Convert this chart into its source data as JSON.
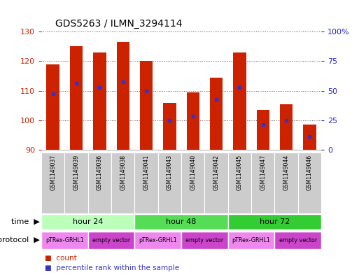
{
  "title": "GDS5263 / ILMN_3294114",
  "samples": [
    "GSM1149037",
    "GSM1149039",
    "GSM1149036",
    "GSM1149038",
    "GSM1149041",
    "GSM1149043",
    "GSM1149040",
    "GSM1149042",
    "GSM1149045",
    "GSM1149047",
    "GSM1149044",
    "GSM1149046"
  ],
  "bar_heights": [
    119.0,
    125.0,
    123.0,
    126.5,
    120.0,
    106.0,
    109.5,
    114.5,
    123.0,
    103.5,
    105.5,
    98.5
  ],
  "bar_bottom": 90,
  "percentile_values": [
    109.0,
    112.5,
    111.0,
    113.0,
    110.0,
    100.0,
    101.5,
    107.0,
    111.0,
    98.5,
    100.0,
    94.5
  ],
  "ylim": [
    90,
    130
  ],
  "yticks": [
    90,
    100,
    110,
    120,
    130
  ],
  "bar_color": "#cc2200",
  "percentile_color": "#3333cc",
  "bar_width": 0.55,
  "time_groups": [
    {
      "label": "hour 24",
      "start": 0,
      "end": 4,
      "color": "#bbffbb"
    },
    {
      "label": "hour 48",
      "start": 4,
      "end": 8,
      "color": "#55dd55"
    },
    {
      "label": "hour 72",
      "start": 8,
      "end": 12,
      "color": "#33cc33"
    }
  ],
  "protocol_groups": [
    {
      "label": "pTRex-GRHL1",
      "start": 0,
      "end": 2,
      "color": "#ee88ee"
    },
    {
      "label": "empty vector",
      "start": 2,
      "end": 4,
      "color": "#cc44cc"
    },
    {
      "label": "pTRex-GRHL1",
      "start": 4,
      "end": 6,
      "color": "#ee88ee"
    },
    {
      "label": "empty vector",
      "start": 6,
      "end": 8,
      "color": "#cc44cc"
    },
    {
      "label": "pTRex-GRHL1",
      "start": 8,
      "end": 10,
      "color": "#ee88ee"
    },
    {
      "label": "empty vector",
      "start": 10,
      "end": 12,
      "color": "#cc44cc"
    }
  ],
  "bg_color": "#ffffff",
  "grid_color": "#000000",
  "tick_color_left": "#cc2200",
  "tick_color_right": "#2222cc",
  "right_ytick_labels": [
    "0",
    "25",
    "50",
    "75",
    "100%"
  ]
}
